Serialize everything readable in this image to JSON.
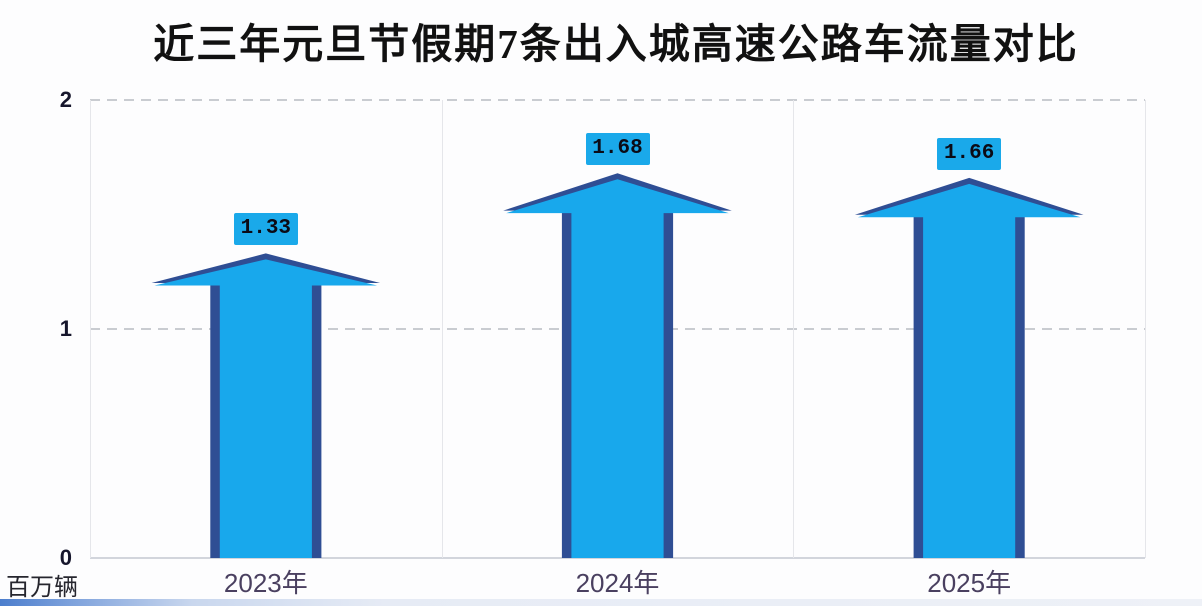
{
  "title": "近三年元旦节假期7条出入城高速公路车流量对比",
  "y_axis": {
    "unit_label": "百万辆",
    "ticks": [
      {
        "label": "2",
        "value": 2
      },
      {
        "label": "1",
        "value": 1
      },
      {
        "label": "0",
        "value": 0
      }
    ]
  },
  "chart_data": {
    "type": "bar",
    "style": "upward-block-arrows-3d",
    "title": "近三年元旦节假期7条出入城高速公路车流量对比",
    "categories": [
      "2023年",
      "2024年",
      "2025年"
    ],
    "values": [
      1.33,
      1.68,
      1.66
    ],
    "data_labels": [
      "1.33",
      "1.68",
      "1.66"
    ],
    "xlabel": "",
    "ylabel": "百万辆",
    "ylim": [
      0,
      2
    ],
    "yticks": [
      0,
      1,
      2
    ],
    "grid": {
      "horizontal_dashed_at": [
        1,
        2
      ],
      "baseline_solid_at": 0,
      "vertical_panel_borders": true
    },
    "legend": "none",
    "colors": {
      "arrow_fill": "#18a8ec",
      "arrow_shadow": "#2f4e94",
      "label_box_fill": "#1aa9ea",
      "label_text": "#0b0b16",
      "title_text": "#111111",
      "category_text": "#4a4060",
      "tick_text": "#16162c"
    }
  }
}
